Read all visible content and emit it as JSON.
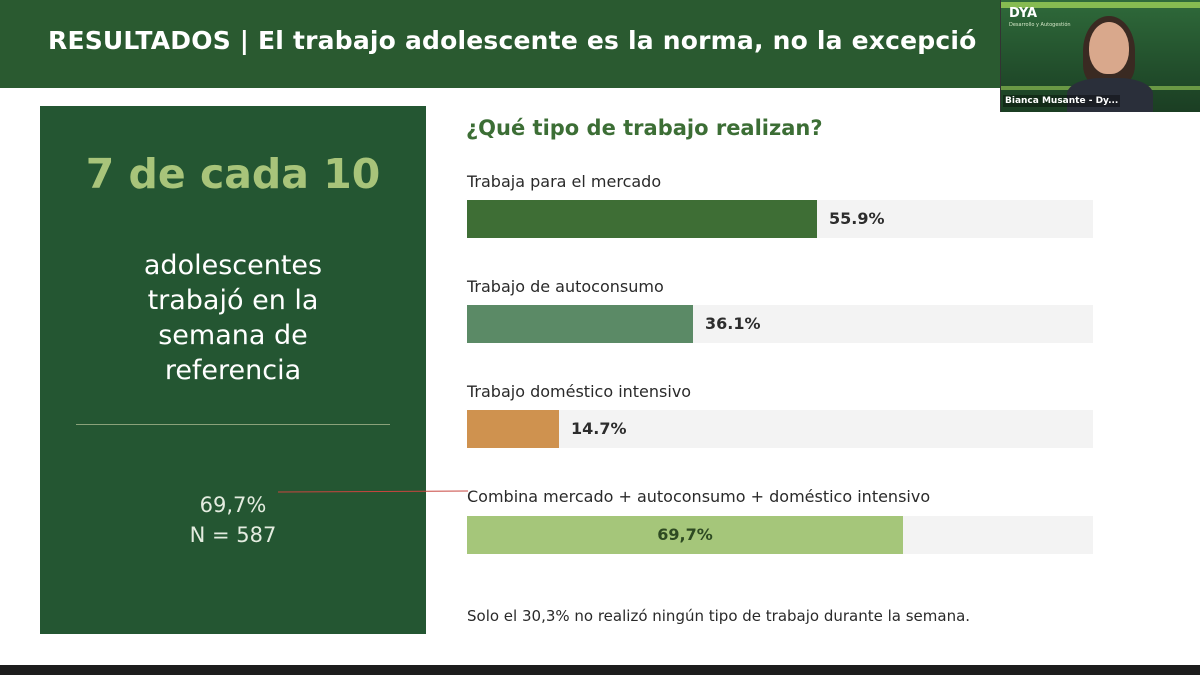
{
  "header": {
    "title": "RESULTADOS | El trabajo adolescente es la norma, no la excepció"
  },
  "left_panel": {
    "big_stat": "7 de cada 10",
    "description": [
      "adolescentes",
      "trabajó en la",
      "semana de",
      "referencia"
    ],
    "percent": "69,7%",
    "sample": "N = 587"
  },
  "chart_data": {
    "type": "bar",
    "title": "¿Qué tipo de trabajo realizan?",
    "categories": [
      "Trabaja para el mercado",
      "Trabajo de autoconsumo",
      "Trabajo doméstico intensivo",
      "Combina mercado + autoconsumo + doméstico intensivo"
    ],
    "values": [
      55.9,
      36.1,
      14.7,
      69.7
    ],
    "value_labels": [
      "55.9%",
      "36.1%",
      "14.7%",
      "69,7%"
    ],
    "colors": [
      "#3e6e35",
      "#5b8a66",
      "#cf924f",
      "#a5c67a"
    ],
    "ylim": [
      0,
      100
    ],
    "footnote": "Solo el 30,3% no realizó ningún tipo de trabajo durante la semana."
  },
  "webcam": {
    "logo": "DYA",
    "logo_sub": "Desarrollo y Autogestión",
    "participant_name": "Bianca Musante - Dy..."
  }
}
